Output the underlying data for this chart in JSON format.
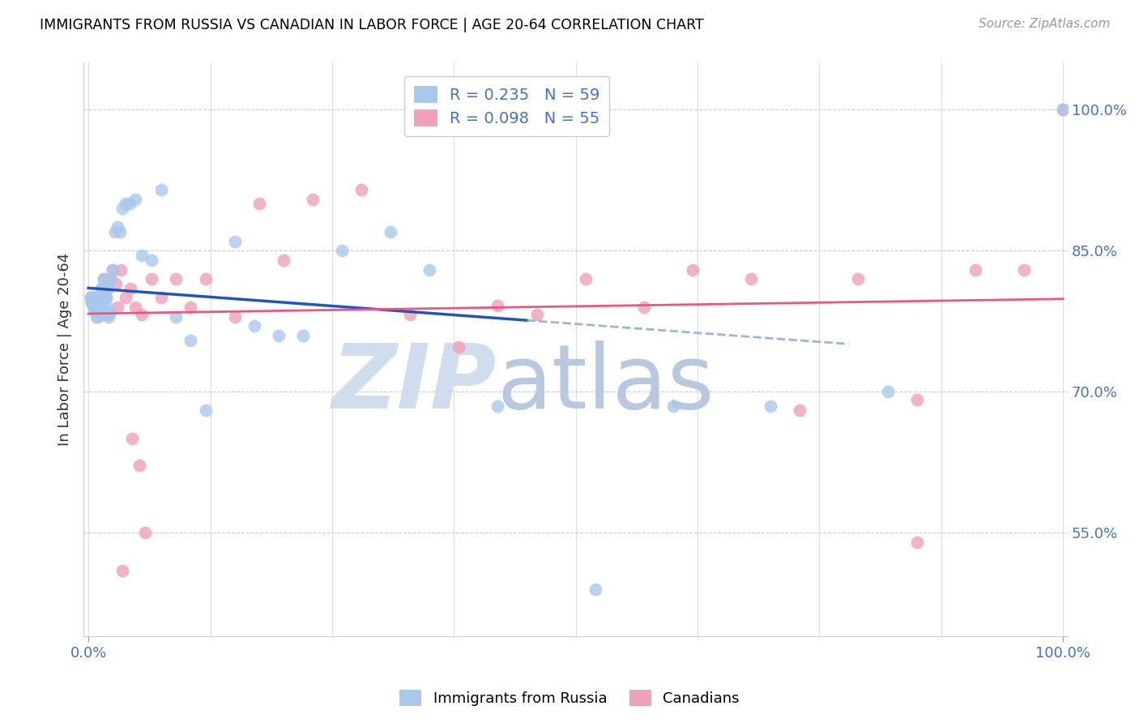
{
  "title": "IMMIGRANTS FROM RUSSIA VS CANADIAN IN LABOR FORCE | AGE 20-64 CORRELATION CHART",
  "source": "Source: ZipAtlas.com",
  "ylabel": "In Labor Force | Age 20-64",
  "yticks": [
    0.55,
    0.7,
    0.85,
    1.0
  ],
  "ytick_labels": [
    "55.0%",
    "70.0%",
    "85.0%",
    "100.0%"
  ],
  "ymin": 0.44,
  "ymax": 1.05,
  "xmin": -0.005,
  "xmax": 1.005,
  "blue_color": "#A8C8EE",
  "pink_color": "#F0A0B8",
  "blue_line_color": "#2255BB",
  "pink_line_color": "#EE5580",
  "blue_R": 0.235,
  "blue_N": 59,
  "pink_R": 0.098,
  "pink_N": 55,
  "watermark_zip": "ZIP",
  "watermark_atlas": "atlas",
  "watermark_color": "#D0DDEE",
  "blue_x": [
    0.002,
    0.003,
    0.003,
    0.004,
    0.004,
    0.005,
    0.005,
    0.006,
    0.006,
    0.007,
    0.007,
    0.008,
    0.008,
    0.009,
    0.009,
    0.01,
    0.01,
    0.011,
    0.012,
    0.013,
    0.013,
    0.014,
    0.014,
    0.015,
    0.016,
    0.017,
    0.018,
    0.019,
    0.02,
    0.021,
    0.022,
    0.023,
    0.025,
    0.027,
    0.03,
    0.032,
    0.035,
    0.038,
    0.042,
    0.048,
    0.055,
    0.065,
    0.075,
    0.09,
    0.105,
    0.12,
    0.15,
    0.17,
    0.195,
    0.22,
    0.26,
    0.31,
    0.35,
    0.42,
    0.52,
    0.6,
    0.7,
    0.82,
    1.0
  ],
  "blue_y": [
    0.8,
    0.795,
    0.8,
    0.8,
    0.795,
    0.8,
    0.79,
    0.8,
    0.79,
    0.795,
    0.785,
    0.79,
    0.78,
    0.79,
    0.785,
    0.78,
    0.785,
    0.795,
    0.79,
    0.8,
    0.81,
    0.81,
    0.8,
    0.8,
    0.82,
    0.81,
    0.8,
    0.79,
    0.81,
    0.78,
    0.785,
    0.82,
    0.83,
    0.87,
    0.875,
    0.87,
    0.895,
    0.9,
    0.9,
    0.905,
    0.845,
    0.84,
    0.915,
    0.78,
    0.755,
    0.68,
    0.86,
    0.77,
    0.76,
    0.76,
    0.85,
    0.87,
    0.83,
    0.685,
    0.49,
    0.685,
    0.685,
    0.7,
    1.0
  ],
  "pink_x": [
    0.002,
    0.003,
    0.004,
    0.005,
    0.006,
    0.007,
    0.008,
    0.009,
    0.01,
    0.011,
    0.012,
    0.013,
    0.014,
    0.015,
    0.016,
    0.018,
    0.02,
    0.022,
    0.025,
    0.028,
    0.03,
    0.033,
    0.038,
    0.043,
    0.048,
    0.055,
    0.065,
    0.075,
    0.09,
    0.105,
    0.12,
    0.15,
    0.175,
    0.2,
    0.23,
    0.28,
    0.33,
    0.38,
    0.42,
    0.46,
    0.51,
    0.57,
    0.62,
    0.68,
    0.73,
    0.79,
    0.85,
    0.91,
    0.85,
    0.96,
    1.0,
    0.045,
    0.052,
    0.058,
    0.035
  ],
  "pink_y": [
    0.8,
    0.795,
    0.795,
    0.793,
    0.796,
    0.798,
    0.796,
    0.795,
    0.79,
    0.8,
    0.782,
    0.79,
    0.8,
    0.782,
    0.82,
    0.8,
    0.782,
    0.82,
    0.83,
    0.815,
    0.79,
    0.83,
    0.8,
    0.81,
    0.79,
    0.782,
    0.82,
    0.8,
    0.82,
    0.79,
    0.82,
    0.78,
    0.9,
    0.84,
    0.905,
    0.915,
    0.782,
    0.748,
    0.792,
    0.782,
    0.82,
    0.79,
    0.83,
    0.82,
    0.68,
    0.82,
    0.692,
    0.83,
    0.54,
    0.83,
    1.0,
    0.65,
    0.622,
    0.55,
    0.51
  ]
}
